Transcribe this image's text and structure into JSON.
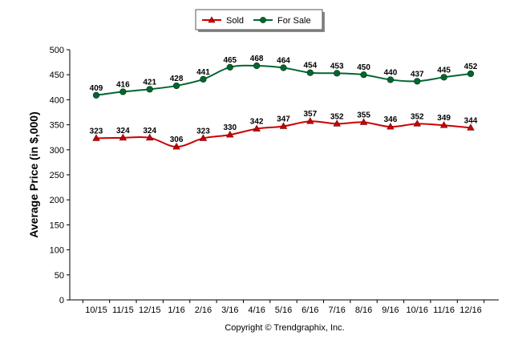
{
  "chart_data": {
    "type": "line",
    "categories": [
      "10/15",
      "11/15",
      "12/15",
      "1/16",
      "2/16",
      "3/16",
      "4/16",
      "5/16",
      "6/16",
      "7/16",
      "8/16",
      "9/16",
      "10/16",
      "11/16",
      "12/16"
    ],
    "series": [
      {
        "name": "Sold",
        "color": "#cc0000",
        "marker": "triangle",
        "values": [
          323,
          324,
          324,
          306,
          323,
          330,
          342,
          347,
          357,
          352,
          355,
          346,
          352,
          349,
          344
        ]
      },
      {
        "name": "For Sale",
        "color": "#006633",
        "marker": "circle",
        "values": [
          409,
          416,
          421,
          428,
          441,
          465,
          468,
          464,
          454,
          453,
          450,
          440,
          437,
          445,
          452
        ]
      }
    ],
    "title": "",
    "xlabel": "",
    "ylabel": "Average Price (in $,000)",
    "ylim": [
      0,
      500
    ],
    "yticks": [
      0,
      50,
      100,
      150,
      200,
      250,
      300,
      350,
      400,
      450,
      500
    ],
    "legend": "top-center",
    "grid": false,
    "copyright": "Copyright © Trendgraphix, Inc."
  }
}
